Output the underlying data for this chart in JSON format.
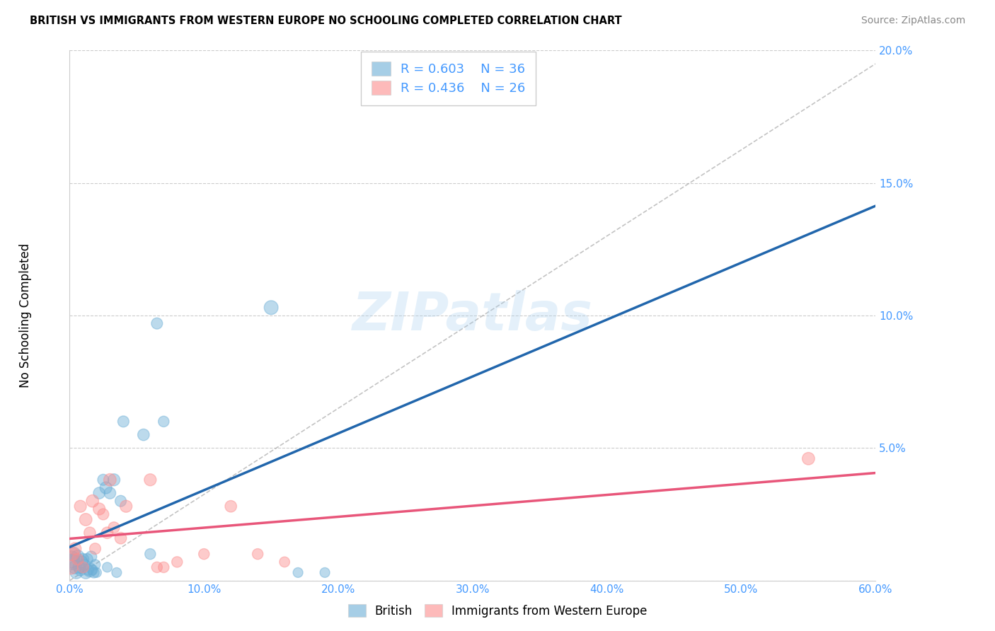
{
  "title": "BRITISH VS IMMIGRANTS FROM WESTERN EUROPE NO SCHOOLING COMPLETED CORRELATION CHART",
  "source": "Source: ZipAtlas.com",
  "ylabel": "No Schooling Completed",
  "watermark": "ZIPatlas",
  "xlim": [
    0.0,
    0.6
  ],
  "ylim": [
    0.0,
    0.2
  ],
  "xticks": [
    0.0,
    0.1,
    0.2,
    0.3,
    0.4,
    0.5,
    0.6
  ],
  "yticks": [
    0.0,
    0.05,
    0.1,
    0.15,
    0.2
  ],
  "xtick_labels": [
    "0.0%",
    "10.0%",
    "20.0%",
    "30.0%",
    "40.0%",
    "50.0%",
    "60.0%"
  ],
  "ytick_labels": [
    "",
    "5.0%",
    "10.0%",
    "15.0%",
    "20.0%"
  ],
  "british_color": "#6baed6",
  "immigrant_color": "#fc8d8d",
  "british_line_color": "#2166ac",
  "immigrant_line_color": "#e8567a",
  "british_R": 0.603,
  "british_N": 36,
  "immigrant_R": 0.436,
  "immigrant_N": 26,
  "british_x": [
    0.001,
    0.002,
    0.003,
    0.004,
    0.005,
    0.006,
    0.007,
    0.008,
    0.009,
    0.01,
    0.011,
    0.012,
    0.013,
    0.014,
    0.015,
    0.016,
    0.017,
    0.018,
    0.019,
    0.02,
    0.022,
    0.025,
    0.027,
    0.028,
    0.03,
    0.033,
    0.035,
    0.038,
    0.04,
    0.055,
    0.06,
    0.065,
    0.07,
    0.15,
    0.17,
    0.19
  ],
  "british_y": [
    0.008,
    0.007,
    0.01,
    0.005,
    0.003,
    0.009,
    0.005,
    0.004,
    0.007,
    0.008,
    0.006,
    0.003,
    0.008,
    0.004,
    0.004,
    0.009,
    0.004,
    0.003,
    0.006,
    0.003,
    0.033,
    0.038,
    0.035,
    0.005,
    0.033,
    0.038,
    0.003,
    0.03,
    0.06,
    0.055,
    0.01,
    0.097,
    0.06,
    0.103,
    0.003,
    0.003
  ],
  "british_sizes": [
    300,
    250,
    200,
    180,
    160,
    180,
    150,
    140,
    150,
    140,
    130,
    160,
    140,
    120,
    200,
    130,
    110,
    120,
    110,
    100,
    140,
    130,
    150,
    100,
    140,
    150,
    100,
    130,
    130,
    140,
    120,
    130,
    120,
    200,
    100,
    100
  ],
  "immigrant_x": [
    0.001,
    0.002,
    0.004,
    0.006,
    0.008,
    0.01,
    0.012,
    0.015,
    0.017,
    0.019,
    0.022,
    0.025,
    0.028,
    0.03,
    0.033,
    0.038,
    0.042,
    0.06,
    0.065,
    0.07,
    0.08,
    0.1,
    0.12,
    0.14,
    0.16,
    0.55
  ],
  "immigrant_y": [
    0.005,
    0.01,
    0.012,
    0.008,
    0.028,
    0.005,
    0.023,
    0.018,
    0.03,
    0.012,
    0.027,
    0.025,
    0.018,
    0.038,
    0.02,
    0.016,
    0.028,
    0.038,
    0.005,
    0.005,
    0.007,
    0.01,
    0.028,
    0.01,
    0.007,
    0.046
  ],
  "immigrant_sizes": [
    200,
    180,
    160,
    140,
    150,
    130,
    160,
    140,
    160,
    130,
    150,
    130,
    140,
    160,
    130,
    140,
    150,
    150,
    120,
    120,
    120,
    120,
    140,
    120,
    110,
    160
  ],
  "dash_line_x": [
    0.0,
    0.6
  ],
  "dash_line_y": [
    0.0,
    0.195
  ]
}
